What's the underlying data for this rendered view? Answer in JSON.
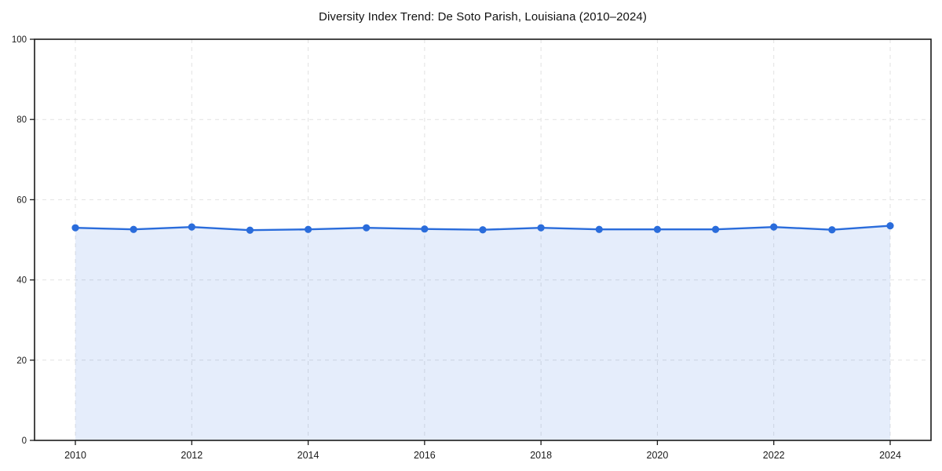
{
  "figure": {
    "background": "#ffffff"
  },
  "chart_data": {
    "type": "area",
    "title": "Diversity Index Trend: De Soto Parish, Louisiana (2010–2024)",
    "xlabel": "",
    "ylabel": "",
    "x": [
      2010,
      2011,
      2012,
      2013,
      2014,
      2015,
      2016,
      2017,
      2018,
      2019,
      2020,
      2021,
      2022,
      2023,
      2024
    ],
    "series": [
      {
        "name": "Diversity Index",
        "values": [
          53.0,
          52.6,
          53.2,
          52.4,
          52.6,
          53.0,
          52.7,
          52.5,
          53.0,
          52.6,
          52.6,
          52.6,
          53.2,
          52.5,
          53.5
        ]
      }
    ],
    "ylim": [
      0,
      100
    ],
    "yticks": [
      0,
      20,
      40,
      60,
      80,
      100
    ],
    "xticks": [
      2010,
      2012,
      2014,
      2016,
      2018,
      2020,
      2022,
      2024
    ],
    "grid": true,
    "grid_style": "dashed",
    "legend": false,
    "colors": {
      "line": "#2a6cdb",
      "marker": "#2a6cdb",
      "fill": "rgba(42,108,219,0.12)",
      "grid": "#e2e2e2",
      "axis": "#1a1a1a",
      "tick_text": "#1a1a1a",
      "title_text": "#111111",
      "background": "#ffffff"
    }
  }
}
